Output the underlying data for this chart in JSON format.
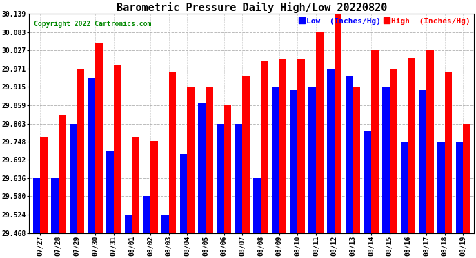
{
  "title": "Barometric Pressure Daily High/Low 20220820",
  "copyright": "Copyright 2022 Cartronics.com",
  "legend_low": "Low",
  "legend_high": "High",
  "legend_units": "(Inches/Hg)",
  "ylim": [
    29.468,
    30.139
  ],
  "yticks": [
    29.468,
    29.524,
    29.58,
    29.636,
    29.692,
    29.748,
    29.803,
    29.859,
    29.915,
    29.971,
    30.027,
    30.083,
    30.139
  ],
  "dates": [
    "07/27",
    "07/28",
    "07/29",
    "07/30",
    "07/31",
    "08/01",
    "08/02",
    "08/03",
    "08/04",
    "08/05",
    "08/06",
    "08/07",
    "08/08",
    "08/09",
    "08/10",
    "08/11",
    "08/12",
    "08/13",
    "08/14",
    "08/15",
    "08/16",
    "08/17",
    "08/18",
    "08/19"
  ],
  "high_values": [
    29.762,
    29.83,
    29.971,
    30.05,
    29.982,
    29.762,
    29.75,
    29.96,
    29.915,
    29.915,
    29.859,
    29.95,
    29.995,
    30.0,
    30.0,
    30.083,
    30.139,
    29.915,
    30.027,
    29.971,
    30.005,
    30.027,
    29.96,
    29.803
  ],
  "low_values": [
    29.636,
    29.636,
    29.803,
    29.94,
    29.72,
    29.524,
    29.58,
    29.524,
    29.71,
    29.868,
    29.803,
    29.803,
    29.636,
    29.915,
    29.906,
    29.915,
    29.971,
    29.95,
    29.78,
    29.915,
    29.748,
    29.906,
    29.748,
    29.748
  ],
  "bar_width": 0.4,
  "color_low": "#0000ff",
  "color_high": "#ff0000",
  "bg_color": "#ffffff",
  "grid_color": "#aaaaaa",
  "title_fontsize": 11,
  "tick_fontsize": 7,
  "copyright_fontsize": 7,
  "legend_fontsize": 8
}
